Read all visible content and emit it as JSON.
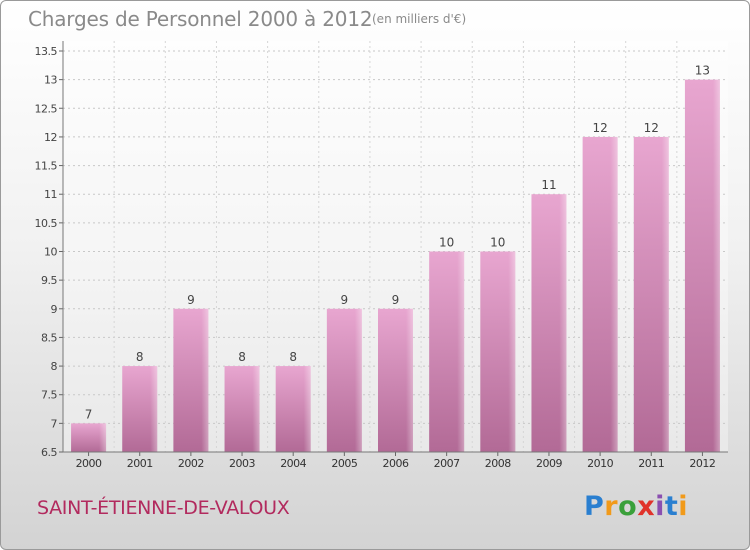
{
  "title": "Charges de Personnel 2000 à 2012",
  "subtitle": "(en milliers d'€)",
  "commune": "SAINT-ÉTIENNE-DE-VALOUX",
  "logo": {
    "letters": [
      "P",
      "r",
      "o",
      "x",
      "i",
      "t",
      "i"
    ],
    "colors": [
      "#2a7fd0",
      "#f19a1a",
      "#3aa03a",
      "#e0322a",
      "#8a4fb0",
      "#2a7fd0",
      "#f19a1a"
    ]
  },
  "colors": {
    "bar_top": "#e8a6d0",
    "bar_bottom": "#b26a96",
    "title": "#8a8a8a",
    "commune": "#b22a5e"
  },
  "chart_data": {
    "type": "bar",
    "categories": [
      "2000",
      "2001",
      "2002",
      "2003",
      "2004",
      "2005",
      "2006",
      "2007",
      "2008",
      "2009",
      "2010",
      "2011",
      "2012"
    ],
    "values": [
      7,
      8,
      9,
      8,
      8,
      9,
      9,
      10,
      10,
      11,
      12,
      12,
      13
    ],
    "data_labels": [
      "7",
      "8",
      "9",
      "8",
      "8",
      "9",
      "9",
      "10",
      "10",
      "11",
      "12",
      "12",
      "13"
    ],
    "title": "Charges de Personnel 2000 à 2012",
    "xlabel": "",
    "ylabel": "",
    "ylim": [
      6.5,
      13.5
    ],
    "yticks": [
      "6.5",
      "7",
      "7.5",
      "8",
      "8.5",
      "9",
      "9.5",
      "10",
      "10.5",
      "11",
      "11.5",
      "12",
      "12.5",
      "13",
      "13.5"
    ],
    "grid": true
  }
}
